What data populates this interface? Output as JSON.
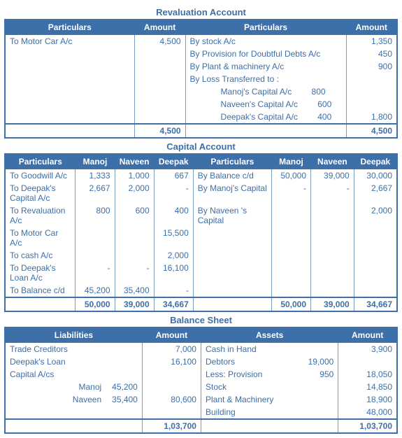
{
  "revaluation": {
    "title": "Revaluation Account",
    "headers": {
      "lp": "Particulars",
      "la": "Amount",
      "rp": "Particulars",
      "ra": "Amount"
    },
    "rows": [
      {
        "lp": "To Motor Car A/c",
        "la": "4,500",
        "rp": "By stock A/c",
        "ra": "1,350"
      },
      {
        "lp": "",
        "la": "",
        "rp": "By Provision for Doubtful Debts A/c",
        "ra": "450"
      },
      {
        "lp": "",
        "la": "",
        "rp": "By Plant & machinery A/c",
        "ra": "900"
      },
      {
        "lp": "",
        "la": "",
        "rp": "By Loss Transferred to :",
        "ra": ""
      },
      {
        "lp": "",
        "la": "",
        "rp_label": "Manoj's Capital A/c",
        "rp_val": "800",
        "ra": ""
      },
      {
        "lp": "",
        "la": "",
        "rp_label": "Naveen's Capital A/c",
        "rp_val": "600",
        "ra": ""
      },
      {
        "lp": "",
        "la": "",
        "rp_label": "Deepak's Capital A/c",
        "rp_val": "400",
        "ra": "1,800",
        "last": true
      }
    ],
    "total": {
      "la": "4,500",
      "ra": "4,500"
    }
  },
  "capital": {
    "title": "Capital Account",
    "headers": {
      "lp": "Particulars",
      "m": "Manoj",
      "n": "Naveen",
      "d": "Deepak",
      "rp": "Particulars",
      "m2": "Manoj",
      "n2": "Naveen",
      "d2": "Deepak"
    },
    "rows": [
      {
        "lp": "To Goodwill A/c",
        "m": "1,333",
        "n": "1,000",
        "d": "667",
        "rp": "By Balance c/d",
        "m2": "50,000",
        "n2": "39,000",
        "d2": "30,000"
      },
      {
        "lp": "To Deepak's Capital A/c",
        "m": "2,667",
        "n": "2,000",
        "d": "-",
        "rp": "By Manoj's Capital",
        "m2": "-",
        "n2": "-",
        "d2": "2,667"
      },
      {
        "lp": "To Revaluation A/c",
        "m": "800",
        "n": "600",
        "d": "400",
        "rp": "By Naveen 's Capital",
        "m2": "",
        "n2": "",
        "d2": "2,000"
      },
      {
        "lp": "To Motor Car A/c",
        "m": "",
        "n": "",
        "d": "15,500",
        "rp": "",
        "m2": "",
        "n2": "",
        "d2": ""
      },
      {
        "lp": "To cash A/c",
        "m": "",
        "n": "",
        "d": "2,000",
        "rp": "",
        "m2": "",
        "n2": "",
        "d2": ""
      },
      {
        "lp": "To Deepak's Loan A/c",
        "m": "-",
        "n": "-",
        "d": "16,100",
        "rp": "",
        "m2": "",
        "n2": "",
        "d2": ""
      },
      {
        "lp": "To Balance c/d",
        "m": "45,200",
        "n": "35,400",
        "d": "-",
        "rp": "",
        "m2": "",
        "n2": "",
        "d2": "",
        "last": true
      }
    ],
    "total": {
      "m": "50,000",
      "n": "39,000",
      "d": "34,667",
      "m2": "50,000",
      "n2": "39,000",
      "d2": "34,667"
    }
  },
  "balance": {
    "title": "Balance Sheet",
    "headers": {
      "ll": "Liabilities",
      "la": "Amount",
      "ra": "Assets",
      "raa": "Amount"
    },
    "rows": [
      {
        "ll": "Trade Creditors",
        "lv": "",
        "la": "7,000",
        "rl": "Cash in Hand",
        "rv": "",
        "ra": "3,900"
      },
      {
        "ll": "Deepak's Loan",
        "lv": "",
        "la": "16,100",
        "rl": "Debtors",
        "rv": "19,000",
        "ra": ""
      },
      {
        "ll": "Capital A/cs",
        "lv": "",
        "la": "",
        "rl": "Less: Provision",
        "rv": "950",
        "ra": "18,050"
      },
      {
        "ll_label": "Manoj",
        "lv": "45,200",
        "la": "",
        "rl": "Stock",
        "rv": "",
        "ra": "14,850"
      },
      {
        "ll_label": "Naveen",
        "lv": "35,400",
        "la": "80,600",
        "rl": "Plant & Machinery",
        "rv": "",
        "ra": "18,900"
      },
      {
        "ll": "",
        "lv": "",
        "la": "",
        "rl": "Building",
        "rv": "",
        "ra": "48,000",
        "last": true
      }
    ],
    "total": {
      "la": "1,03,700",
      "ra": "1,03,700"
    }
  }
}
